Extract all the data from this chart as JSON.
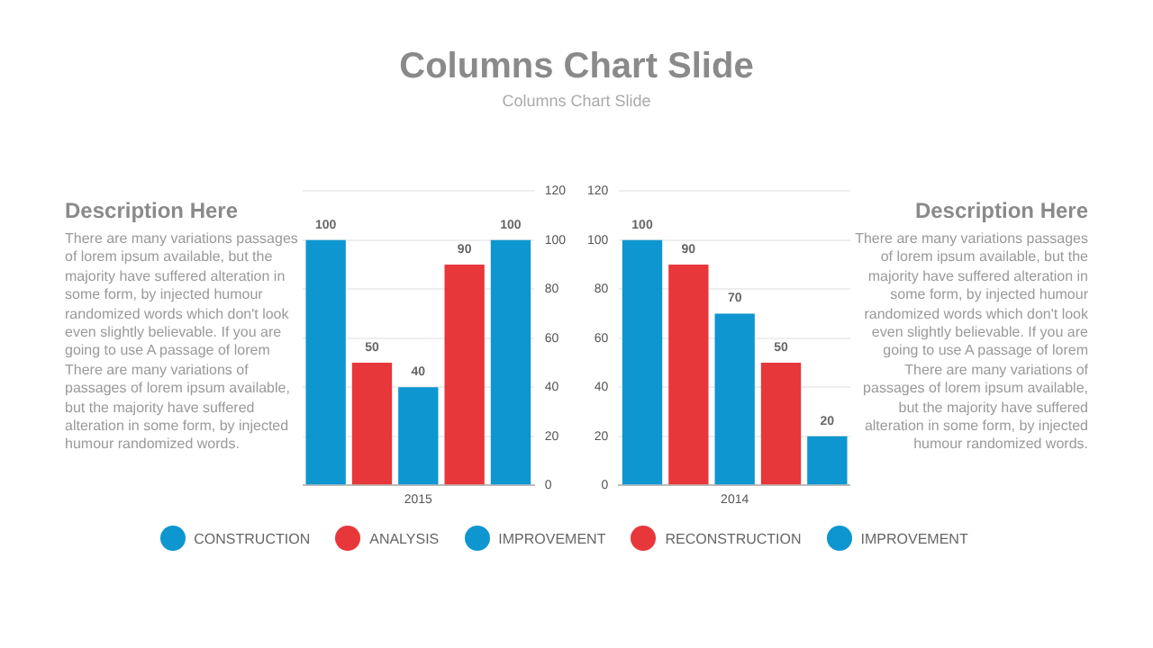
{
  "chart_data": [
    {
      "type": "other",
      "title": "Description Here",
      "annotations": [
        "There are many variations passages of lorem ipsum available, but the majority have suffered alteration in some form, by injected humour randomized words which don't look even slightly believable. If you are going to use A passage of lorem There are many variations of passages of lorem ipsum available, but the majority have suffered alteration in some form, by injected humour randomized words."
      ]
    },
    {
      "type": "bar",
      "title": "Columns Chart Slide",
      "subtitle": "Columns Chart Slide",
      "xlabel": "2015",
      "categories": [
        null,
        null,
        null,
        null,
        null
      ],
      "series": [
        {
          "name": "CONSTRUCTION",
          "color": "#0e96d0",
          "values": [
            100,
            null,
            null,
            null,
            null
          ]
        },
        {
          "name": "ANALYSIS",
          "color": "#e8373a",
          "values": [
            null,
            50,
            null,
            null,
            null
          ]
        },
        {
          "name": "IMPROVEMENT",
          "color": "#0e96d0",
          "values": [
            null,
            null,
            40,
            null,
            null
          ]
        },
        {
          "name": "RECONSTRUCTION",
          "color": "#e8373a",
          "values": [
            null,
            null,
            null,
            90,
            null
          ]
        },
        {
          "name": "IMPROVEMENT",
          "color": "#0e96d0",
          "values": [
            null,
            null,
            null,
            null,
            100
          ]
        }
      ],
      "ylim": [
        0,
        120
      ],
      "yticks": [
        0,
        20,
        40,
        60,
        80,
        100,
        120
      ],
      "grid": "y",
      "legend": "bottom",
      "tick_labels": "y",
      "data_labels": true
    },
    {
      "type": "bar",
      "xlabel": "2014",
      "categories": [
        null,
        null,
        null,
        null,
        null
      ],
      "values": [
        100,
        90,
        70,
        50,
        20
      ],
      "colors": [
        "#0e96d0",
        "#e8373a",
        "#0e96d0",
        "#e8373a",
        "#0e96d0"
      ],
      "ylim": [
        0,
        120
      ],
      "yticks": [
        0,
        20,
        40,
        60,
        80,
        100,
        120
      ],
      "grid": "y",
      "tick_labels": "y",
      "data_labels": true
    },
    {
      "type": "other",
      "title": "Description Here",
      "annotations": [
        "There are many variations passages of lorem ipsum available, but the majority have suffered alteration in some form, by injected humour randomized words which don't look even slightly believable. If you are going to use A passage of lorem There are many variations of passages of lorem ipsum available, but the majority have suffered alteration in some form, by injected humour randomized words."
      ]
    }
  ]
}
